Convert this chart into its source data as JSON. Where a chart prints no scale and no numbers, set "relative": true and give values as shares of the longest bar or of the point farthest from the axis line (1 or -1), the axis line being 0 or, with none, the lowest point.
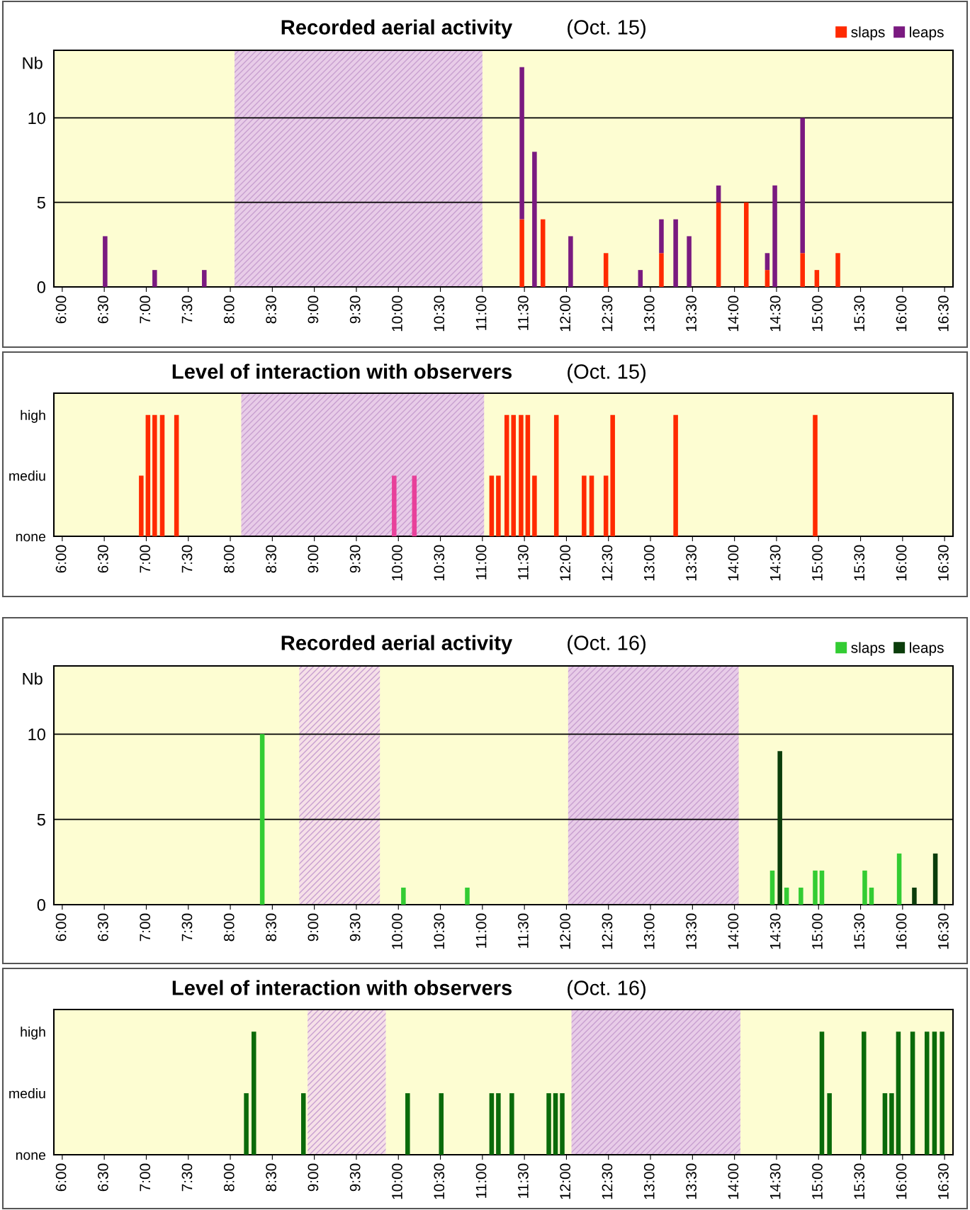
{
  "chart_data": [
    {
      "type": "bar",
      "title": "Recorded aerial activity",
      "subtitle": "(Oct. 15)",
      "ylabel": "Nb",
      "stacked": true,
      "grid": "y",
      "legend": "top right",
      "x": [
        6.51,
        7.1,
        7.69,
        11.47,
        11.62,
        11.72,
        12.05,
        12.47,
        12.88,
        13.13,
        13.3,
        13.46,
        13.81,
        14.14,
        14.39,
        14.48,
        14.81,
        14.98,
        15.23
      ],
      "series": [
        {
          "name": "slaps",
          "color": "#ff2a00",
          "values": [
            null,
            null,
            null,
            4,
            null,
            4,
            null,
            2,
            null,
            2,
            null,
            null,
            5,
            5,
            1,
            null,
            2,
            1,
            2
          ]
        },
        {
          "name": "leaps",
          "color": "#7a1a80",
          "values": [
            3,
            1,
            1,
            9,
            8,
            null,
            3,
            null,
            1,
            2,
            4,
            3,
            1,
            null,
            1,
            6,
            8,
            null,
            null
          ]
        }
      ],
      "ylim": [
        0,
        14
      ],
      "yticks": [
        0,
        5,
        10
      ],
      "xlim": [
        5.9,
        16.6
      ],
      "xticks": [
        {
          "value": 6,
          "label": "6:00"
        },
        {
          "value": 6.5,
          "label": "6:30"
        },
        {
          "value": 7,
          "label": "7:00"
        },
        {
          "value": 7.5,
          "label": "7:30"
        },
        {
          "value": 8,
          "label": "8:00"
        },
        {
          "value": 8.5,
          "label": "8:30"
        },
        {
          "value": 9,
          "label": "9:00"
        },
        {
          "value": 9.5,
          "label": "9:30"
        },
        {
          "value": 10,
          "label": "10:00"
        },
        {
          "value": 10.5,
          "label": "10:30"
        },
        {
          "value": 11,
          "label": "11:00"
        },
        {
          "value": 11.5,
          "label": "11:30"
        },
        {
          "value": 12,
          "label": "12:00"
        },
        {
          "value": 12.5,
          "label": "12:30"
        },
        {
          "value": 13,
          "label": "13:00"
        },
        {
          "value": 13.5,
          "label": "13:30"
        },
        {
          "value": 14,
          "label": "14:00"
        },
        {
          "value": 14.5,
          "label": "14:30"
        },
        {
          "value": 15,
          "label": "15:00"
        },
        {
          "value": 15.5,
          "label": "15:30"
        },
        {
          "value": 16,
          "label": "16:00"
        },
        {
          "value": 16.5,
          "label": "16:30"
        }
      ],
      "bands": [
        {
          "axis": "x",
          "from": 8.05,
          "to": 11.0,
          "color": "#e8cce8"
        }
      ]
    },
    {
      "type": "bar",
      "title": "Level of interaction with observers",
      "subtitle": "(Oct. 15)",
      "x": [
        6.94,
        7.02,
        7.1,
        7.19,
        7.36,
        9.95,
        10.19,
        11.11,
        11.19,
        11.29,
        11.37,
        11.46,
        11.54,
        11.62,
        11.88,
        12.21,
        12.3,
        12.47,
        12.55,
        13.3,
        14.96
      ],
      "relative": true,
      "y_categories": [
        "high",
        "mediu",
        "none"
      ],
      "values": [
        0.5,
        1,
        1,
        1,
        1,
        0.5,
        0.5,
        0.5,
        0.5,
        1,
        1,
        1,
        1,
        0.5,
        1,
        0.5,
        0.5,
        0.5,
        1,
        1,
        1
      ],
      "colors": [
        "#ff2a00",
        "#ff2a00",
        "#ff2a00",
        "#ff2a00",
        "#ff2a00",
        "#e8409a",
        "#e8409a",
        "#ff2a00",
        "#ff2a00",
        "#ff2a00",
        "#ff2a00",
        "#ff2a00",
        "#ff2a00",
        "#ff2a00",
        "#ff2a00",
        "#ff2a00",
        "#ff2a00",
        "#ff2a00",
        "#ff2a00",
        "#ff2a00",
        "#ff2a00"
      ],
      "xlim": [
        5.9,
        16.6
      ],
      "xticks": [
        {
          "value": 6,
          "label": "6:00"
        },
        {
          "value": 6.5,
          "label": "6:30"
        },
        {
          "value": 7,
          "label": "7:00"
        },
        {
          "value": 7.5,
          "label": "7:30"
        },
        {
          "value": 8,
          "label": "8:00"
        },
        {
          "value": 8.5,
          "label": "8:30"
        },
        {
          "value": 9,
          "label": "9:00"
        },
        {
          "value": 9.5,
          "label": "9:30"
        },
        {
          "value": 10,
          "label": "10:00"
        },
        {
          "value": 10.5,
          "label": "10:30"
        },
        {
          "value": 11,
          "label": "11:00"
        },
        {
          "value": 11.5,
          "label": "11:30"
        },
        {
          "value": 12,
          "label": "12:00"
        },
        {
          "value": 12.5,
          "label": "12:30"
        },
        {
          "value": 13,
          "label": "13:00"
        },
        {
          "value": 13.5,
          "label": "13:30"
        },
        {
          "value": 14,
          "label": "14:00"
        },
        {
          "value": 14.5,
          "label": "14:30"
        },
        {
          "value": 15,
          "label": "15:00"
        },
        {
          "value": 15.5,
          "label": "15:30"
        },
        {
          "value": 16,
          "label": "16:00"
        },
        {
          "value": 16.5,
          "label": "16:30"
        }
      ],
      "bands": [
        {
          "axis": "x",
          "from": 8.13,
          "to": 11.02,
          "color": "#e8cce8"
        }
      ]
    },
    {
      "type": "bar",
      "title": "Recorded aerial activity",
      "subtitle": "(Oct. 16)",
      "ylabel": "Nb",
      "stacked": true,
      "grid": "y",
      "legend": "top right",
      "x": [
        8.38,
        10.06,
        10.82,
        14.45,
        14.54,
        14.62,
        14.79,
        14.96,
        15.04,
        15.55,
        15.63,
        15.96,
        16.14,
        16.39
      ],
      "series": [
        {
          "name": "slaps",
          "color": "#33cc33",
          "values": [
            10,
            1,
            1,
            2,
            null,
            1,
            1,
            2,
            2,
            2,
            1,
            3,
            null,
            null
          ]
        },
        {
          "name": "leaps",
          "color": "#0b3d0b",
          "values": [
            null,
            null,
            null,
            null,
            9,
            null,
            null,
            null,
            null,
            null,
            null,
            null,
            1,
            3
          ]
        }
      ],
      "ylim": [
        0,
        14
      ],
      "yticks": [
        0,
        5,
        10
      ],
      "xlim": [
        5.9,
        16.6
      ],
      "xticks": [
        {
          "value": 6,
          "label": "6:00"
        },
        {
          "value": 6.5,
          "label": "6:30"
        },
        {
          "value": 7,
          "label": "7:00"
        },
        {
          "value": 7.5,
          "label": "7:30"
        },
        {
          "value": 8,
          "label": "8:00"
        },
        {
          "value": 8.5,
          "label": "8:30"
        },
        {
          "value": 9,
          "label": "9:00"
        },
        {
          "value": 9.5,
          "label": "9:30"
        },
        {
          "value": 10,
          "label": "10:00"
        },
        {
          "value": 10.5,
          "label": "10:30"
        },
        {
          "value": 11,
          "label": "11:00"
        },
        {
          "value": 11.5,
          "label": "11:30"
        },
        {
          "value": 12,
          "label": "12:00"
        },
        {
          "value": 12.5,
          "label": "12:30"
        },
        {
          "value": 13,
          "label": "13:00"
        },
        {
          "value": 13.5,
          "label": "13:30"
        },
        {
          "value": 14,
          "label": "14:00"
        },
        {
          "value": 14.5,
          "label": "14:30"
        },
        {
          "value": 15,
          "label": "15:00"
        },
        {
          "value": 15.5,
          "label": "15:30"
        },
        {
          "value": 16,
          "label": "16:00"
        },
        {
          "value": 16.5,
          "label": "16:30"
        }
      ],
      "bands": [
        {
          "axis": "x",
          "from": 8.82,
          "to": 9.78,
          "color": "#f6e0e8"
        },
        {
          "axis": "x",
          "from": 12.02,
          "to": 14.05,
          "color": "#e8cce8"
        }
      ]
    },
    {
      "type": "bar",
      "title": "Level of interaction with observers",
      "subtitle": "(Oct. 16)",
      "x": [
        8.19,
        8.28,
        8.87,
        10.11,
        10.51,
        11.11,
        11.19,
        11.35,
        11.79,
        11.87,
        11.95,
        15.04,
        15.13,
        15.54,
        15.79,
        15.87,
        15.95,
        16.12,
        16.29,
        16.38,
        16.47
      ],
      "relative": true,
      "y_categories": [
        "high",
        "mediu",
        "none"
      ],
      "values": [
        0.5,
        1,
        0.5,
        0.5,
        0.5,
        0.5,
        0.5,
        0.5,
        0.5,
        0.5,
        0.5,
        1,
        0.5,
        1,
        0.5,
        0.5,
        1,
        1,
        1,
        1,
        1
      ],
      "colors": [
        "#0a6a0a",
        "#0a6a0a",
        "#0a6a0a",
        "#0a6a0a",
        "#0a6a0a",
        "#0a6a0a",
        "#0a6a0a",
        "#0a6a0a",
        "#0a6a0a",
        "#0a6a0a",
        "#0a6a0a",
        "#0a6a0a",
        "#0a6a0a",
        "#0a6a0a",
        "#0a6a0a",
        "#0a6a0a",
        "#0a6a0a",
        "#0a6a0a",
        "#0a6a0a",
        "#0a6a0a",
        "#0a6a0a"
      ],
      "xlim": [
        5.9,
        16.6
      ],
      "xticks": [
        {
          "value": 6,
          "label": "6:00"
        },
        {
          "value": 6.5,
          "label": "6:30"
        },
        {
          "value": 7,
          "label": "7:00"
        },
        {
          "value": 7.5,
          "label": "7:30"
        },
        {
          "value": 8,
          "label": "8:00"
        },
        {
          "value": 8.5,
          "label": "8:30"
        },
        {
          "value": 9,
          "label": "9:00"
        },
        {
          "value": 9.5,
          "label": "9:30"
        },
        {
          "value": 10,
          "label": "10:00"
        },
        {
          "value": 10.5,
          "label": "10:30"
        },
        {
          "value": 11,
          "label": "11:00"
        },
        {
          "value": 11.5,
          "label": "11:30"
        },
        {
          "value": 12,
          "label": "12:00"
        },
        {
          "value": 12.5,
          "label": "12:30"
        },
        {
          "value": 13,
          "label": "13:00"
        },
        {
          "value": 13.5,
          "label": "13:30"
        },
        {
          "value": 14,
          "label": "14:00"
        },
        {
          "value": 14.5,
          "label": "14:30"
        },
        {
          "value": 15,
          "label": "15:00"
        },
        {
          "value": 15.5,
          "label": "15:30"
        },
        {
          "value": 16,
          "label": "16:00"
        },
        {
          "value": 16.5,
          "label": "16:30"
        }
      ],
      "bands": [
        {
          "axis": "x",
          "from": 8.92,
          "to": 9.85,
          "color": "#f6e0e8"
        },
        {
          "axis": "x",
          "from": 12.06,
          "to": 14.07,
          "color": "#e8cce8"
        }
      ]
    }
  ]
}
